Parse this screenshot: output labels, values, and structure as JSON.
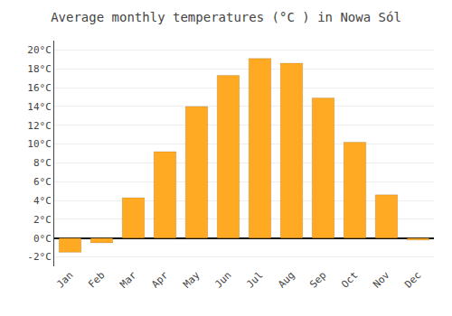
{
  "chart_data": {
    "type": "bar",
    "title": "Average monthly temperatures (°C ) in Nowa Sól",
    "categories": [
      "Jan",
      "Feb",
      "Mar",
      "Apr",
      "May",
      "Jun",
      "Jul",
      "Aug",
      "Sep",
      "Oct",
      "Nov",
      "Dec"
    ],
    "values": [
      -1.5,
      -0.5,
      4.3,
      9.2,
      14.0,
      17.3,
      19.1,
      18.6,
      14.9,
      10.2,
      4.6,
      -0.2
    ],
    "color": "#FFAA22",
    "ylim": [
      -3,
      21
    ],
    "yticks": [
      {
        "value": -2,
        "label": "-2°C"
      },
      {
        "value": 0,
        "label": "0°C"
      },
      {
        "value": 2,
        "label": "2°C"
      },
      {
        "value": 4,
        "label": "4°C"
      },
      {
        "value": 6,
        "label": "6°C"
      },
      {
        "value": 8,
        "label": "8°C"
      },
      {
        "value": 10,
        "label": "10°C"
      },
      {
        "value": 12,
        "label": "12°C"
      },
      {
        "value": 14,
        "label": "14°C"
      },
      {
        "value": 16,
        "label": "16°C"
      },
      {
        "value": 18,
        "label": "18°C"
      },
      {
        "value": 20,
        "label": "20°C"
      }
    ],
    "grid": true
  }
}
